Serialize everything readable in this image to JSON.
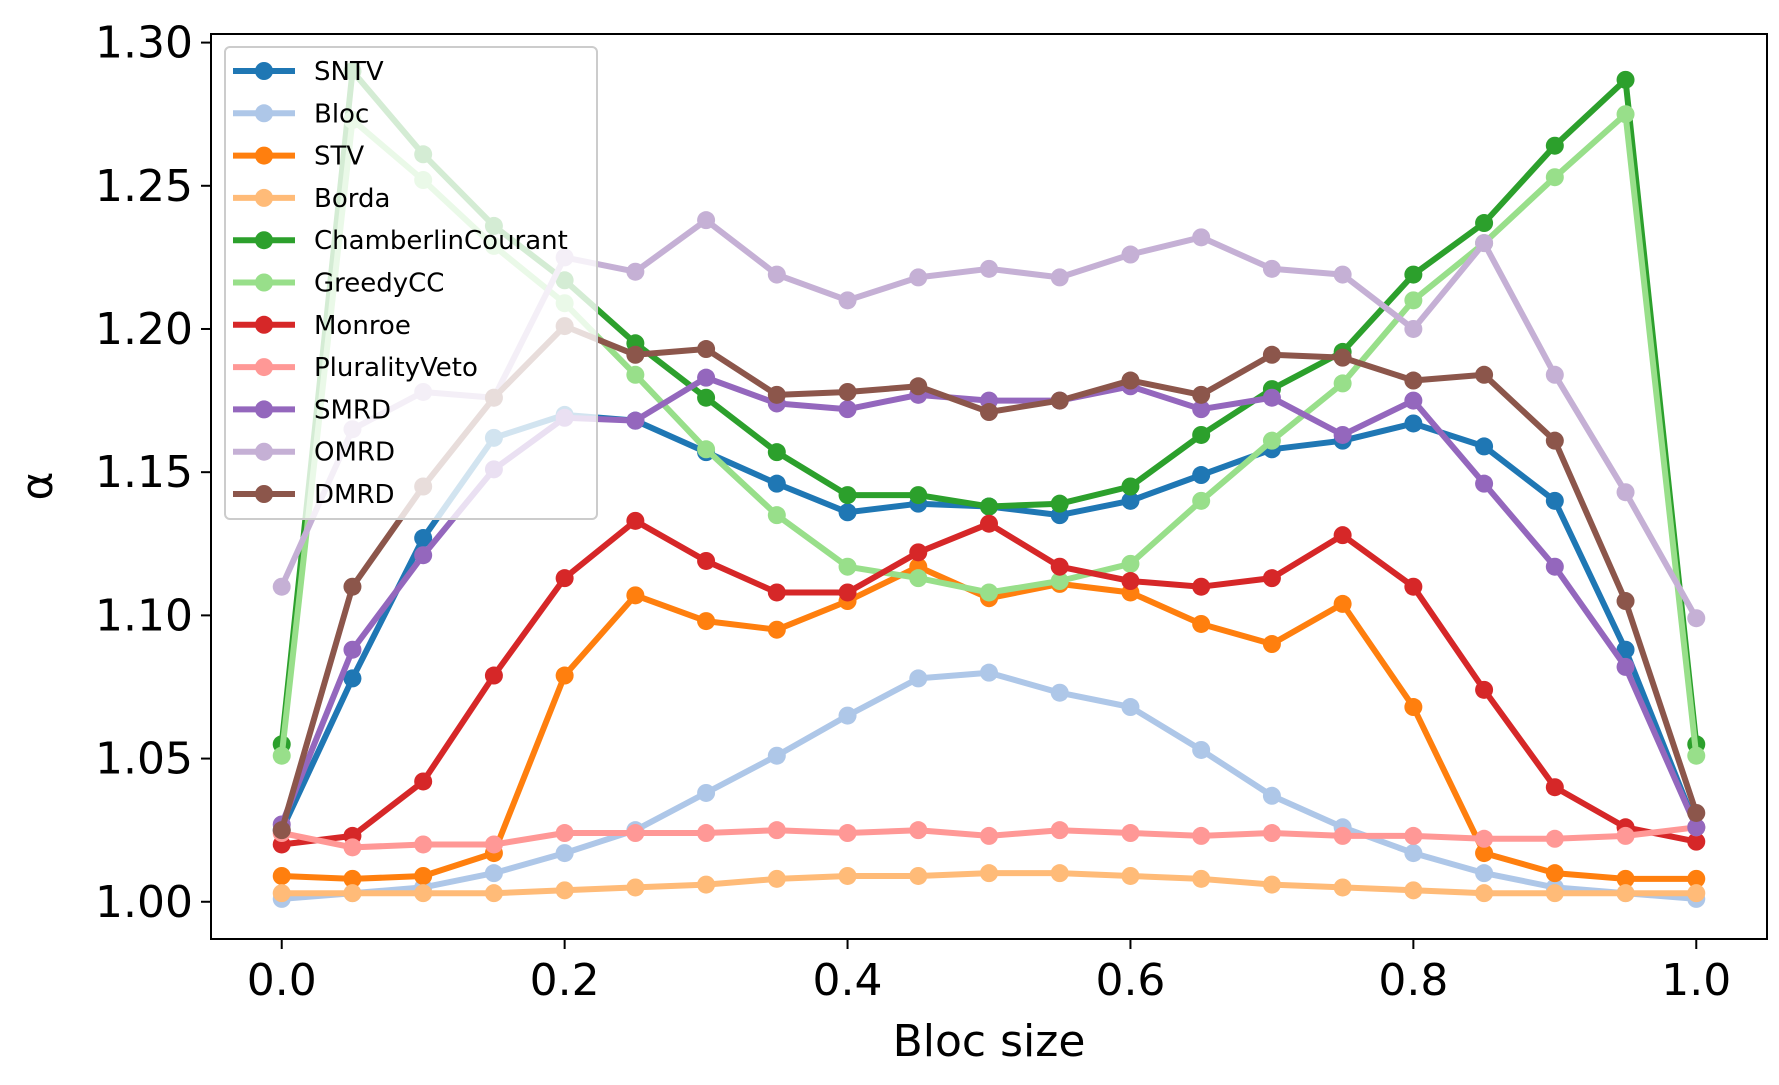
{
  "chart_data": {
    "type": "line",
    "title": "",
    "xlabel": "Bloc size",
    "ylabel": "α",
    "xlim": [
      -0.05,
      1.05
    ],
    "ylim": [
      0.987,
      1.303
    ],
    "grid": false,
    "legend_position": "top-left",
    "x_ticks": [
      0.0,
      0.2,
      0.4,
      0.6,
      0.8,
      1.0
    ],
    "x_tick_labels": [
      "0.0",
      "0.2",
      "0.4",
      "0.6",
      "0.8",
      "1.0"
    ],
    "y_ticks": [
      1.0,
      1.05,
      1.1,
      1.15,
      1.2,
      1.25,
      1.3
    ],
    "y_tick_labels": [
      "1.00",
      "1.05",
      "1.10",
      "1.15",
      "1.20",
      "1.25",
      "1.30"
    ],
    "x": [
      0.0,
      0.05,
      0.1,
      0.15,
      0.2,
      0.25,
      0.3,
      0.35,
      0.4,
      0.45,
      0.5,
      0.55,
      0.6,
      0.65,
      0.7,
      0.75,
      0.8,
      0.85,
      0.9,
      0.95,
      1.0
    ],
    "series": [
      {
        "name": "SNTV",
        "color": "#1f77b4",
        "values": [
          1.025,
          1.078,
          1.127,
          1.162,
          1.17,
          1.168,
          1.157,
          1.146,
          1.136,
          1.139,
          1.138,
          1.135,
          1.14,
          1.149,
          1.158,
          1.161,
          1.167,
          1.159,
          1.14,
          1.088,
          1.026
        ]
      },
      {
        "name": "Bloc",
        "color": "#aec7e8",
        "values": [
          1.001,
          1.003,
          1.005,
          1.01,
          1.017,
          1.025,
          1.038,
          1.051,
          1.065,
          1.078,
          1.08,
          1.073,
          1.068,
          1.053,
          1.037,
          1.026,
          1.017,
          1.01,
          1.005,
          1.003,
          1.001
        ]
      },
      {
        "name": "STV",
        "color": "#ff7f0e",
        "values": [
          1.009,
          1.008,
          1.009,
          1.017,
          1.079,
          1.107,
          1.098,
          1.095,
          1.105,
          1.117,
          1.106,
          1.111,
          1.108,
          1.097,
          1.09,
          1.104,
          1.068,
          1.017,
          1.01,
          1.008,
          1.008
        ]
      },
      {
        "name": "Borda",
        "color": "#ffbb78",
        "values": [
          1.003,
          1.003,
          1.003,
          1.003,
          1.004,
          1.005,
          1.006,
          1.008,
          1.009,
          1.009,
          1.01,
          1.01,
          1.009,
          1.008,
          1.006,
          1.005,
          1.004,
          1.003,
          1.003,
          1.003,
          1.003
        ]
      },
      {
        "name": "ChamberlinCourant",
        "color": "#2ca02c",
        "values": [
          1.055,
          1.29,
          1.261,
          1.236,
          1.217,
          1.195,
          1.176,
          1.157,
          1.142,
          1.142,
          1.138,
          1.139,
          1.145,
          1.163,
          1.179,
          1.192,
          1.219,
          1.237,
          1.264,
          1.287,
          1.055
        ]
      },
      {
        "name": "GreedyCC",
        "color": "#98df8a",
        "values": [
          1.051,
          1.273,
          1.252,
          1.229,
          1.209,
          1.184,
          1.158,
          1.135,
          1.117,
          1.113,
          1.108,
          1.112,
          1.118,
          1.14,
          1.161,
          1.181,
          1.21,
          1.23,
          1.253,
          1.275,
          1.051
        ]
      },
      {
        "name": "Monroe",
        "color": "#d62728",
        "values": [
          1.02,
          1.023,
          1.042,
          1.079,
          1.113,
          1.133,
          1.119,
          1.108,
          1.108,
          1.122,
          1.132,
          1.117,
          1.112,
          1.11,
          1.113,
          1.128,
          1.11,
          1.074,
          1.04,
          1.026,
          1.021
        ]
      },
      {
        "name": "PluralityVeto",
        "color": "#ff9896",
        "values": [
          1.024,
          1.019,
          1.02,
          1.02,
          1.024,
          1.024,
          1.024,
          1.025,
          1.024,
          1.025,
          1.023,
          1.025,
          1.024,
          1.023,
          1.024,
          1.023,
          1.023,
          1.022,
          1.022,
          1.023,
          1.026
        ]
      },
      {
        "name": "SMRD",
        "color": "#9467bd",
        "values": [
          1.027,
          1.088,
          1.121,
          1.151,
          1.169,
          1.168,
          1.183,
          1.174,
          1.172,
          1.177,
          1.175,
          1.175,
          1.18,
          1.172,
          1.176,
          1.163,
          1.175,
          1.146,
          1.117,
          1.082,
          1.026
        ]
      },
      {
        "name": "OMRD",
        "color": "#c5b0d5",
        "values": [
          1.11,
          1.165,
          1.178,
          1.176,
          1.225,
          1.22,
          1.238,
          1.219,
          1.21,
          1.218,
          1.221,
          1.218,
          1.226,
          1.232,
          1.221,
          1.219,
          1.2,
          1.23,
          1.184,
          1.143,
          1.099
        ]
      },
      {
        "name": "DMRD",
        "color": "#8c564b",
        "values": [
          1.025,
          1.11,
          1.145,
          1.176,
          1.201,
          1.191,
          1.193,
          1.177,
          1.178,
          1.18,
          1.171,
          1.175,
          1.182,
          1.177,
          1.191,
          1.19,
          1.182,
          1.184,
          1.161,
          1.105,
          1.031
        ]
      }
    ]
  }
}
